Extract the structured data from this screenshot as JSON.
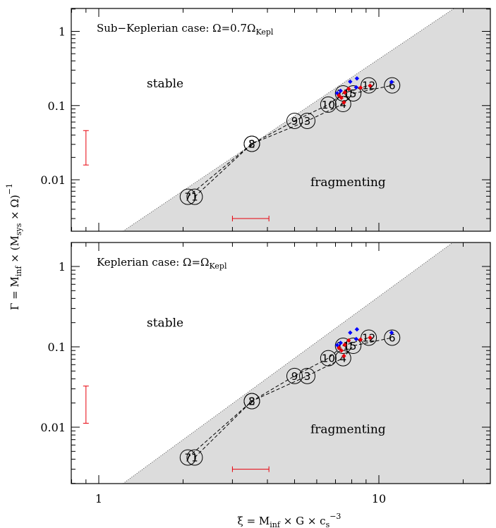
{
  "chart_data": [
    {
      "type": "scatter",
      "title": "Sub−Keplerian case: Ω=0.7Ω",
      "title_sub": "Kepl",
      "x_scale": "log",
      "y_scale": "log",
      "xlim": [
        0.8,
        25
      ],
      "ylim": [
        0.0022,
        2.0
      ],
      "y_ticks": [
        {
          "value": 1,
          "label": "1"
        },
        {
          "value": 0.1,
          "label": "0.1"
        },
        {
          "value": 0.01,
          "label": "0.01"
        }
      ],
      "regions": {
        "stable": "stable",
        "fragmenting": "fragmenting"
      },
      "boundary": {
        "points": [
          [
            1.22,
            0.0022
          ],
          [
            16.85,
            1.6
          ]
        ]
      },
      "points": [
        {
          "label": "7",
          "x": 2.08,
          "y": 0.0059
        },
        {
          "label": "1",
          "x": 2.2,
          "y": 0.0059
        },
        {
          "label": "2",
          "x": 3.52,
          "y": 0.0305
        },
        {
          "label": "8",
          "x": 3.52,
          "y": 0.0305
        },
        {
          "label": "9",
          "x": 5.0,
          "y": 0.0622
        },
        {
          "label": "3",
          "x": 5.55,
          "y": 0.0622
        },
        {
          "label": "10",
          "x": 6.6,
          "y": 0.103
        },
        {
          "label": "4",
          "x": 7.45,
          "y": 0.105
        },
        {
          "label": "11",
          "x": 7.45,
          "y": 0.146
        },
        {
          "label": "5",
          "x": 8.1,
          "y": 0.146
        },
        {
          "label": "12",
          "x": 9.2,
          "y": 0.187
        },
        {
          "label": "6",
          "x": 11.15,
          "y": 0.187
        }
      ],
      "dashed_paths": [
        [
          [
            2.08,
            0.0059
          ],
          [
            3.52,
            0.0305
          ],
          [
            5.0,
            0.0622
          ],
          [
            6.6,
            0.103
          ],
          [
            7.45,
            0.146
          ],
          [
            9.2,
            0.187
          ]
        ],
        [
          [
            2.2,
            0.0059
          ],
          [
            3.52,
            0.0305
          ],
          [
            5.55,
            0.0622
          ],
          [
            7.45,
            0.105
          ],
          [
            8.1,
            0.146
          ],
          [
            11.15,
            0.187
          ]
        ]
      ],
      "red_diamonds": [
        [
          7.2,
          0.137
        ],
        [
          7.35,
          0.127
        ],
        [
          7.55,
          0.15
        ],
        [
          7.8,
          0.168
        ],
        [
          8.6,
          0.174
        ],
        [
          9.3,
          0.185
        ],
        [
          7.5,
          0.11
        ]
      ],
      "blue_diamonds": [
        [
          7.1,
          0.147
        ],
        [
          7.3,
          0.158
        ],
        [
          7.9,
          0.21
        ],
        [
          8.35,
          0.232
        ],
        [
          8.3,
          0.176
        ],
        [
          11.1,
          0.208
        ]
      ],
      "error_bars": {
        "vertical": {
          "x": 0.9,
          "y_low": 0.0158,
          "y_high": 0.046
        },
        "horizontal": {
          "y": 0.003,
          "x_low": 3.0,
          "x_high": 4.05
        }
      }
    },
    {
      "type": "scatter",
      "title": "Keplerian case: Ω=Ω",
      "title_sub": "Kepl",
      "x_scale": "log",
      "y_scale": "log",
      "xlim": [
        0.8,
        25
      ],
      "ylim": [
        0.0022,
        2.0
      ],
      "x_ticks": [
        {
          "value": 1,
          "label": "1"
        },
        {
          "value": 10,
          "label": "10"
        }
      ],
      "y_ticks": [
        {
          "value": 1,
          "label": "1"
        },
        {
          "value": 0.1,
          "label": "0.1"
        },
        {
          "value": 0.01,
          "label": "0.01"
        }
      ],
      "regions": {
        "stable": "stable",
        "fragmenting": "fragmenting"
      },
      "boundary": {
        "points": [
          [
            1.22,
            0.0022
          ],
          [
            16.85,
            1.6
          ]
        ]
      },
      "points": [
        {
          "label": "7",
          "x": 2.08,
          "y": 0.0042
        },
        {
          "label": "1",
          "x": 2.2,
          "y": 0.0042
        },
        {
          "label": "2",
          "x": 3.52,
          "y": 0.0211
        },
        {
          "label": "8",
          "x": 3.52,
          "y": 0.0211
        },
        {
          "label": "9",
          "x": 5.0,
          "y": 0.0434
        },
        {
          "label": "3",
          "x": 5.55,
          "y": 0.0434
        },
        {
          "label": "10",
          "x": 6.6,
          "y": 0.0722
        },
        {
          "label": "4",
          "x": 7.45,
          "y": 0.0722
        },
        {
          "label": "11",
          "x": 7.45,
          "y": 0.103
        },
        {
          "label": "5",
          "x": 8.1,
          "y": 0.103
        },
        {
          "label": "12",
          "x": 9.2,
          "y": 0.13
        },
        {
          "label": "6",
          "x": 11.15,
          "y": 0.13
        }
      ],
      "dashed_paths": [
        [
          [
            2.08,
            0.0042
          ],
          [
            3.52,
            0.0211
          ],
          [
            5.0,
            0.0434
          ],
          [
            6.6,
            0.0722
          ],
          [
            7.45,
            0.103
          ],
          [
            9.2,
            0.13
          ]
        ],
        [
          [
            2.2,
            0.0042
          ],
          [
            3.52,
            0.0211
          ],
          [
            5.55,
            0.0434
          ],
          [
            7.45,
            0.0722
          ],
          [
            8.1,
            0.103
          ],
          [
            11.15,
            0.13
          ]
        ]
      ],
      "red_diamonds": [
        [
          7.2,
          0.097
        ],
        [
          7.35,
          0.09
        ],
        [
          7.55,
          0.106
        ],
        [
          7.8,
          0.12
        ],
        [
          8.6,
          0.123
        ],
        [
          9.3,
          0.13
        ],
        [
          7.5,
          0.077
        ]
      ],
      "blue_diamonds": [
        [
          7.1,
          0.105
        ],
        [
          7.3,
          0.112
        ],
        [
          7.9,
          0.15
        ],
        [
          8.35,
          0.165
        ],
        [
          8.3,
          0.125
        ],
        [
          11.1,
          0.15
        ]
      ],
      "error_bars": {
        "vertical": {
          "x": 0.9,
          "y_low": 0.0112,
          "y_high": 0.0325
        },
        "horizontal": {
          "y": 0.003,
          "x_low": 3.0,
          "x_high": 4.05
        }
      }
    }
  ],
  "axes": {
    "xlabel": {
      "pre": "ξ = ",
      "mdot": "M",
      "sub": "inf",
      "mid": " × G × c",
      "sub2": "s",
      "sup": "−3"
    },
    "ylabel": {
      "pre": "Γ = ",
      "mdot": "M",
      "sub": "inf",
      "mid": " × (M",
      "sub2": "sys",
      "post": " × Ω)",
      "sup": "−1"
    }
  },
  "colors": {
    "fill": "#dcdcdc",
    "red": "#e8000b",
    "blue": "#0000ff",
    "errorbar": "#e8000b",
    "frame": "#000000"
  }
}
